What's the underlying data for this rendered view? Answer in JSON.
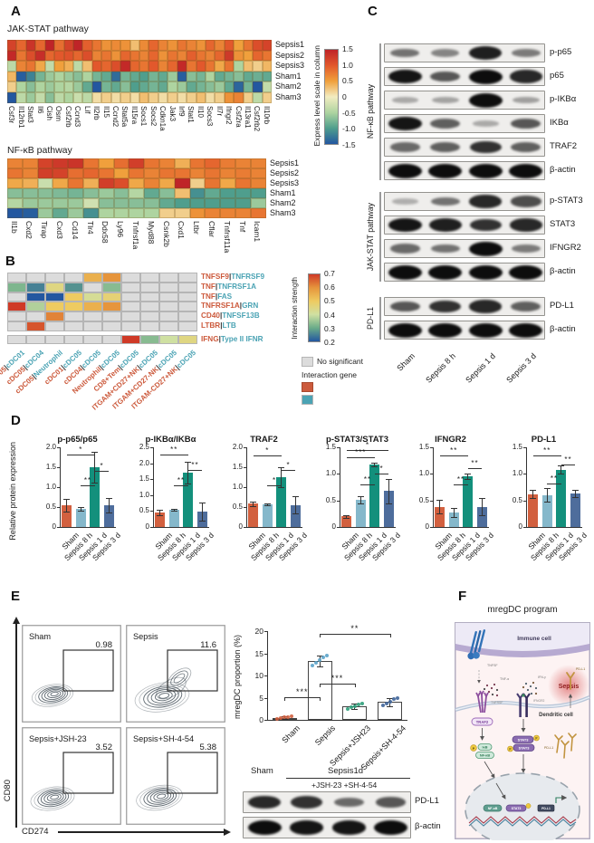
{
  "panel_a": {
    "label": "A",
    "rows": [
      "Sepsis1",
      "Sepsis2",
      "Sepsis3",
      "Sham1",
      "Sham2",
      "Sham3"
    ],
    "jak": {
      "title": "JAK-STAT pathway",
      "genes": [
        "Csf3r",
        "Il12rb1",
        "Stat3",
        "Il6",
        "Cish",
        "Osm",
        "Csf2rb",
        "Ccnd3",
        "Lif",
        "Il2rb",
        "Il15",
        "Ccnd2",
        "Stat5a",
        "Il15ra",
        "Socs1",
        "Socs2",
        "Cdkn1a",
        "Jak3",
        "Irf9",
        "Stat1",
        "Il10",
        "Socs3",
        "Il7r",
        "Ifngr2",
        "Csf2ra",
        "Il13ra1",
        "Csf2rb2",
        "Il10rb"
      ],
      "values": [
        [
          1.2,
          0.9,
          1.35,
          0.9,
          1.5,
          0.85,
          1.2,
          1.5,
          0.95,
          0.8,
          0.6,
          0.65,
          0.6,
          0.3,
          0.65,
          0.9,
          0.7,
          0.6,
          0.8,
          0.7,
          0.6,
          0.9,
          0.7,
          1.0,
          0.5,
          0.8,
          1.1,
          1.2
        ],
        [
          1.45,
          0.8,
          1.1,
          1.4,
          0.9,
          1.0,
          1.05,
          0.9,
          1.1,
          0.7,
          0.8,
          0.6,
          0.9,
          0.8,
          0.7,
          0.9,
          0.6,
          0.8,
          0.7,
          0.95,
          0.8,
          0.7,
          0.9,
          1.3,
          0.6,
          0.5,
          0.9,
          0.8
        ],
        [
          -0.4,
          0.7,
          0.8,
          0.45,
          -0.35,
          0.5,
          0.4,
          -0.4,
          0.3,
          1.0,
          0.9,
          1.1,
          1.45,
          0.9,
          0.8,
          1.0,
          0.7,
          0.9,
          1.45,
          0.8,
          1.0,
          0.8,
          0.45,
          0.8,
          -0.5,
          0.3,
          0.2,
          0.35
        ],
        [
          0.35,
          -1.45,
          -1.2,
          -0.8,
          -0.6,
          -0.5,
          -0.6,
          -0.7,
          -0.5,
          -0.8,
          -0.9,
          -1.35,
          -0.8,
          -0.9,
          -1.0,
          -0.8,
          -0.9,
          -0.6,
          -1.45,
          -0.7,
          -0.8,
          -0.5,
          -0.9,
          -0.8,
          -0.7,
          -0.9,
          -0.85,
          -0.9
        ],
        [
          0.2,
          -0.5,
          -0.7,
          -0.5,
          -0.6,
          -0.5,
          -0.45,
          -0.6,
          -0.9,
          -1.5,
          -0.8,
          -0.9,
          -0.7,
          -1.0,
          -0.9,
          -0.8,
          -0.9,
          -0.5,
          -0.6,
          -0.9,
          -0.8,
          -0.7,
          -0.6,
          -0.9,
          -1.4,
          -0.8,
          -1.5,
          -0.35
        ],
        [
          -1.5,
          -0.4,
          -0.6,
          -0.35,
          -0.7,
          -0.4,
          -0.5,
          -0.3,
          -0.4,
          0.1,
          0.2,
          0.1,
          0.2,
          0.1,
          0.3,
          0.2,
          0.1,
          0.2,
          0.1,
          0.2,
          0.3,
          0.1,
          0.2,
          0.6,
          0.7,
          0.2,
          -0.4,
          0.2
        ]
      ]
    },
    "nfkb": {
      "title": "NF-κB pathway",
      "genes": [
        "Il1b",
        "Cxd2",
        "Tirap",
        "Cxd3",
        "Cd14",
        "Tlr4",
        "Ddx58",
        "Ly96",
        "Tnfrsf1a",
        "Myd88",
        "Csnk2b",
        "Cxd1",
        "Ltbr",
        "Cflar",
        "Tnfrsf11a",
        "Tnf",
        "Icam1"
      ],
      "values": [
        [
          0.7,
          0.7,
          1.2,
          1.3,
          1.35,
          0.8,
          0.5,
          0.85,
          1.25,
          0.8,
          0.7,
          0.4,
          0.8,
          0.9,
          0.75,
          0.7,
          0.7
        ],
        [
          0.8,
          0.7,
          1.25,
          1.2,
          0.85,
          0.9,
          0.8,
          0.5,
          0.8,
          0.7,
          0.8,
          0.8,
          0.7,
          0.8,
          0.7,
          0.75,
          0.7
        ],
        [
          0.45,
          0.4,
          -0.3,
          0.45,
          0.8,
          0.4,
          1.25,
          1.1,
          0.45,
          0.7,
          0.45,
          1.5,
          0.2,
          0.8,
          0.45,
          0.8,
          0.7
        ],
        [
          -0.7,
          -0.7,
          -0.7,
          -0.75,
          -0.8,
          -0.7,
          -0.6,
          -0.7,
          -0.45,
          -0.9,
          -0.7,
          0.3,
          -1.1,
          -0.9,
          -1.0,
          -1.0,
          -1.0
        ],
        [
          -0.45,
          -0.6,
          -0.6,
          -0.6,
          -0.6,
          -0.25,
          -0.7,
          -0.7,
          -0.7,
          -0.7,
          -0.9,
          -1.0,
          -1.0,
          -1.0,
          -1.0,
          -1.0,
          -0.6
        ],
        [
          -1.5,
          -1.45,
          -0.6,
          -0.9,
          -0.6,
          -1.1,
          -0.5,
          -0.5,
          -0.5,
          -0.5,
          0.2,
          0.2,
          0.6,
          0.7,
          0.7,
          0.7,
          0.8
        ]
      ]
    },
    "colorbar": {
      "label": "Express level scale in column",
      "ticks": [
        "1.5",
        "1.0",
        "0.5",
        "0",
        "-0.5",
        "-1.0",
        "-1.5"
      ]
    }
  },
  "panel_b": {
    "label": "B",
    "row_pairs": [
      [
        "TNFSF9",
        "TNFRSF9"
      ],
      [
        "TNF",
        "TNFRSF1A"
      ],
      [
        "TNF",
        "FAS"
      ],
      [
        "TNFRSF1A",
        "GRN"
      ],
      [
        "CD40",
        "TNFSF13B"
      ],
      [
        "LTBR",
        "LTB"
      ],
      [
        "IFNG",
        "Type II IFNR"
      ]
    ],
    "col_pairs": [
      [
        "cDC05",
        "cDC01"
      ],
      [
        "cDC05",
        "cDC04"
      ],
      [
        "cDC05",
        "Neutrophil"
      ],
      [
        "cDC01",
        "cDC05"
      ],
      [
        "cDC04",
        "cDC05"
      ],
      [
        "Neutrophil",
        "cDC05"
      ],
      [
        "CD8+Tem",
        "cDC05"
      ],
      [
        "ITGAM+CD27+NK",
        "cDC05"
      ],
      [
        "ITGAM+CD27-NK",
        "cDC05"
      ],
      [
        "ITGAM-CD27+NK",
        "cDC05"
      ]
    ],
    "values": [
      [
        null,
        null,
        null,
        null,
        0.55,
        0.6,
        null,
        null,
        null,
        null
      ],
      [
        0.32,
        0.25,
        0.45,
        0.27,
        null,
        0.33,
        null,
        null,
        null,
        null
      ],
      [
        null,
        0.2,
        0.2,
        0.5,
        0.42,
        0.47,
        null,
        null,
        null,
        null
      ],
      [
        0.75,
        0.37,
        0.5,
        0.5,
        0.55,
        0.6,
        null,
        null,
        null,
        null
      ],
      [
        null,
        null,
        0.62,
        null,
        null,
        null,
        null,
        null,
        null,
        null
      ],
      [
        null,
        0.67,
        null,
        null,
        null,
        null,
        null,
        null,
        null,
        null
      ]
    ],
    "ifng_values": [
      null,
      null,
      null,
      null,
      null,
      null,
      0.7,
      0.33,
      0.4,
      0.45
    ],
    "legend": {
      "strength_label": "Interaction strength",
      "ticks": [
        "0.7",
        "0.6",
        "0.5",
        "0.4",
        "0.3",
        "0.2"
      ],
      "no_sig": "No significant",
      "interaction_gene": "Interaction gene"
    }
  },
  "panel_c": {
    "label": "C",
    "lanes": [
      "Sham",
      "Sepsis 8 h",
      "Sepsis 1 d",
      "Sepsis 3 d"
    ],
    "groups": [
      {
        "label": "NF-κB pathway",
        "blots": [
          {
            "name": "p-p65",
            "bands": [
              0.45,
              0.35,
              0.9,
              0.4
            ]
          },
          {
            "name": "p65",
            "bands": [
              0.95,
              0.6,
              1,
              0.85
            ]
          },
          {
            "name": "p-IKBα",
            "bands": [
              0.15,
              0.18,
              1,
              0.2
            ]
          },
          {
            "name": "IKBα",
            "bands": [
              0.95,
              0.55,
              0.15,
              0.6
            ]
          },
          {
            "name": "TRAF2",
            "bands": [
              0.5,
              0.55,
              0.8,
              0.55
            ]
          },
          {
            "name": "β-actin",
            "bands": [
              1,
              1,
              1,
              1
            ]
          }
        ]
      },
      {
        "label": "JAK-STAT pathway",
        "blots": [
          {
            "name": "p-STAT3",
            "bands": [
              0.12,
              0.45,
              0.85,
              0.65
            ]
          },
          {
            "name": "STAT3",
            "bands": [
              0.95,
              0.9,
              0.8,
              0.85
            ]
          },
          {
            "name": "IFNGR2",
            "bands": [
              0.5,
              0.45,
              1,
              0.4
            ]
          },
          {
            "name": "β-actin",
            "bands": [
              1,
              1,
              1,
              1
            ]
          }
        ]
      },
      {
        "label": "PD-L1",
        "blots": [
          {
            "name": "PD-L1",
            "bands": [
              0.6,
              0.8,
              0.85,
              0.55
            ]
          },
          {
            "name": "β-actin",
            "bands": [
              1,
              1,
              1,
              1
            ]
          }
        ]
      }
    ]
  },
  "panel_d": {
    "label": "D",
    "ylabel": "Relative protein expression",
    "categories": [
      "Sham",
      "Sepsis 8 h",
      "Sepsis 1 d",
      "Sepsis 3 d"
    ],
    "charts": [
      {
        "title": "p-p65/p65",
        "ylim": 2.0,
        "yticks": [
          "0",
          "0.5",
          "1.0",
          "1.5",
          "2.0"
        ],
        "values": [
          0.55,
          0.46,
          1.5,
          0.55
        ],
        "errors": [
          0.16,
          0.05,
          0.38,
          0.18
        ],
        "sig": [
          {
            "i1": 0,
            "i2": 2,
            "y": 1.82,
            "label": "*"
          },
          {
            "i1": 1,
            "i2": 2,
            "y": 1.05,
            "label": "**"
          },
          {
            "i1": 2,
            "i2": 3,
            "y": 1.42,
            "label": "*"
          }
        ]
      },
      {
        "title": "p-IKBα/IKBα",
        "ylim": 2.5,
        "yticks": [
          "0",
          "0.5",
          "1.0",
          "1.5",
          "2.0",
          "2.5"
        ],
        "values": [
          0.46,
          0.54,
          1.7,
          0.48
        ],
        "errors": [
          0.08,
          0.03,
          0.35,
          0.28
        ],
        "sig": [
          {
            "i1": 0,
            "i2": 2,
            "y": 2.28,
            "label": "**"
          },
          {
            "i1": 1,
            "i2": 2,
            "y": 1.3,
            "label": "**"
          },
          {
            "i1": 2,
            "i2": 3,
            "y": 1.78,
            "label": "**"
          }
        ]
      },
      {
        "title": "TRAF2",
        "ylim": 2.0,
        "yticks": [
          "0",
          "0.5",
          "1.0",
          "1.5",
          "2.0"
        ],
        "values": [
          0.58,
          0.57,
          1.25,
          0.55
        ],
        "errors": [
          0.06,
          0.03,
          0.25,
          0.22
        ],
        "sig": [
          {
            "i1": 0,
            "i2": 2,
            "y": 1.8,
            "label": "*"
          },
          {
            "i1": 1,
            "i2": 2,
            "y": 1.05,
            "label": "*"
          },
          {
            "i1": 2,
            "i2": 3,
            "y": 1.43,
            "label": "*"
          }
        ]
      },
      {
        "title": "p-STAT3/STAT3",
        "ylim": 1.5,
        "yticks": [
          "0",
          "0.5",
          "1.0",
          "1.5"
        ],
        "values": [
          0.2,
          0.51,
          1.18,
          0.68
        ],
        "errors": [
          0.03,
          0.07,
          0.03,
          0.23
        ],
        "sig": [
          {
            "i1": 0,
            "i2": 3,
            "y": 1.45,
            "label": "*"
          },
          {
            "i1": 0,
            "i2": 2,
            "y": 1.31,
            "label": "***"
          },
          {
            "i1": 1,
            "i2": 2,
            "y": 0.8,
            "label": "**"
          },
          {
            "i1": 2,
            "i2": 3,
            "y": 1.0,
            "label": "*"
          }
        ]
      },
      {
        "title": "IFNGR2",
        "ylim": 1.5,
        "yticks": [
          "0",
          "0.5",
          "1.0",
          "1.5"
        ],
        "values": [
          0.38,
          0.27,
          0.96,
          0.38
        ],
        "errors": [
          0.13,
          0.08,
          0.05,
          0.16
        ],
        "sig": [
          {
            "i1": 0,
            "i2": 2,
            "y": 1.35,
            "label": "**"
          },
          {
            "i1": 1,
            "i2": 2,
            "y": 0.8,
            "label": "**"
          },
          {
            "i1": 2,
            "i2": 3,
            "y": 1.1,
            "label": "**"
          }
        ]
      },
      {
        "title": "PD-L1",
        "ylim": 1.5,
        "yticks": [
          "0",
          "0.5",
          "1.0",
          "1.5"
        ],
        "values": [
          0.62,
          0.6,
          1.08,
          0.63
        ],
        "errors": [
          0.08,
          0.13,
          0.08,
          0.07
        ],
        "sig": [
          {
            "i1": 0,
            "i2": 2,
            "y": 1.35,
            "label": "**"
          },
          {
            "i1": 1,
            "i2": 2,
            "y": 0.82,
            "label": "**"
          },
          {
            "i1": 2,
            "i2": 3,
            "y": 1.17,
            "label": "**"
          }
        ]
      }
    ]
  },
  "panel_e": {
    "label": "E",
    "flow": {
      "xlabel": "CD274",
      "ylabel": "CD80",
      "plots": [
        {
          "title": "Sham",
          "value": "0.98"
        },
        {
          "title": "Sepsis",
          "value": "11.6"
        },
        {
          "title": "Sepsis+JSH-23",
          "value": "3.52"
        },
        {
          "title": "Sepsis+SH-4-54",
          "value": "5.38"
        }
      ]
    },
    "bar": {
      "ylabel": "mregDC proportion (%)",
      "ylim": 20,
      "yticks": [
        "0",
        "5",
        "10",
        "15",
        "20"
      ],
      "categories": [
        "Sham",
        "Sepsis",
        "Sepsis+JSH23",
        "Sepsis+SH-4-54"
      ],
      "values": [
        0.5,
        13.3,
        3.0,
        4.0
      ],
      "errors": [
        0.3,
        1.2,
        0.6,
        0.9
      ],
      "dot_colors": [
        "#d2603f",
        "#5ba3c9",
        "#2e9e7a",
        "#3f6499"
      ],
      "sig": [
        {
          "i1": 0,
          "i2": 1,
          "y": 5.1,
          "label": "***"
        },
        {
          "i1": 1,
          "i2": 2,
          "y": 8.2,
          "label": "***"
        },
        {
          "i1": 1,
          "i2": 3,
          "y": 19.4,
          "label": "**"
        }
      ]
    },
    "blot": {
      "group_left": "Sham",
      "group_right": "Sepsis1d",
      "sub_label": "+JSH-23 +SH-4-54",
      "rows": [
        {
          "name": "PD-L1",
          "bands": [
            0.85,
            0.8,
            0.5,
            0.6
          ]
        },
        {
          "name": "β-actin",
          "bands": [
            1,
            0.95,
            0.95,
            1
          ]
        }
      ]
    }
  },
  "panel_f": {
    "label": "F",
    "title": "mregDC program",
    "immune_cell": "Immune cell",
    "tnfsf": "TNFSF",
    "tnf_a": "TNF-α",
    "ifn_g": "IFN-γ",
    "sepsis": "Sepsis",
    "tnfrsf": "TNFRSF",
    "ifngr2": "IFNGR2",
    "traf2": "TRAF2",
    "p": "P",
    "ikb": "IκB",
    "nfkb": "NF-κB",
    "stat3": "STAT3",
    "dendritic": "Dendritic cell",
    "pdl1": "PD-L1"
  },
  "colors": {
    "heatmap_stops_a": [
      [
        "-1.5",
        "#2357a0"
      ],
      [
        "-1.0",
        "#4f9e8d"
      ],
      [
        "-0.5",
        "#aed4a0"
      ],
      [
        "0",
        "#f2ecc1"
      ],
      [
        "0.5",
        "#f0a03c"
      ],
      [
        "1.0",
        "#e2582c"
      ],
      [
        "1.5",
        "#bf2428"
      ]
    ],
    "heatmap_stops_b": [
      [
        "0.2",
        "#2357a0"
      ],
      [
        "0.3",
        "#6aab89"
      ],
      [
        "0.4",
        "#cfe0a2"
      ],
      [
        "0.5",
        "#eecb61"
      ],
      [
        "0.6",
        "#e6953c"
      ],
      [
        "0.7",
        "#cf3a27"
      ]
    ],
    "no_significant": "#dcdcdc",
    "gene_red": "#cc5a3c",
    "gene_teal": "#4ba3b4",
    "bar_colors": [
      "#d2603f",
      "#85b8cb",
      "#13907c",
      "#4e6d9c"
    ]
  }
}
